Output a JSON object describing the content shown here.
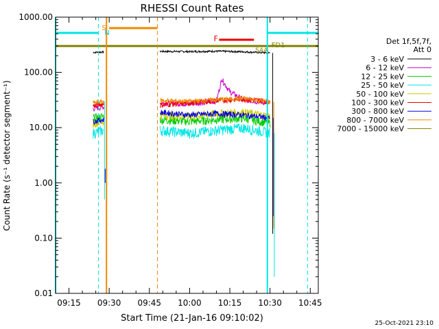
{
  "chart_data": {
    "type": "line",
    "title": "RHESSI Count Rates",
    "xlabel": "Start Time (21-Jan-16 09:10:02)",
    "ylabel": "Count Rate (s⁻¹ detector segment⁻¹)",
    "y_scale": "log",
    "ylim": [
      0.01,
      1000
    ],
    "xlim": [
      "09:10",
      "10:48"
    ],
    "x_ticks": [
      "09:15",
      "09:30",
      "09:45",
      "10:00",
      "10:15",
      "10:30",
      "10:45"
    ],
    "y_ticks": [
      "1000.00",
      "100.00",
      "10.00",
      "1.00",
      "0.10",
      "0.01"
    ],
    "legend_placement": "right",
    "legend_header": [
      "Det 1f,5f,7f,",
      "Att 0"
    ],
    "series": [
      {
        "name": "3 - 6 keV",
        "color": "#000000",
        "x": [
          "09:24",
          "09:28",
          "09:49",
          "10:00",
          "10:10",
          "10:20",
          "10:30"
        ],
        "values": [
          230,
          235,
          240,
          238,
          242,
          236,
          225
        ]
      },
      {
        "name": "6 - 12 keV",
        "color": "#cc00cc",
        "x": [
          "09:24",
          "09:28",
          "09:49",
          "10:00",
          "10:10",
          "10:12",
          "10:15",
          "10:20",
          "10:30"
        ],
        "values": [
          22,
          24,
          28,
          27,
          30,
          75,
          45,
          32,
          28
        ]
      },
      {
        "name": "12 - 25 keV",
        "color": "#00cc00",
        "x": [
          "09:24",
          "09:28",
          "09:49",
          "10:00",
          "10:10",
          "10:20",
          "10:30"
        ],
        "values": [
          15,
          16,
          14,
          13,
          14,
          15,
          12
        ]
      },
      {
        "name": "25 - 50 keV",
        "color": "#00e5e5",
        "x": [
          "09:24",
          "09:28",
          "09:49",
          "10:00",
          "10:10",
          "10:20",
          "10:30"
        ],
        "values": [
          8,
          9,
          9,
          8,
          9,
          10,
          8
        ]
      },
      {
        "name": "50 - 100 keV",
        "color": "#cccc00",
        "x": [
          "09:24",
          "09:28",
          "09:49",
          "10:00",
          "10:10",
          "10:20",
          "10:30"
        ],
        "values": [
          12,
          13,
          17,
          16,
          18,
          19,
          16
        ]
      },
      {
        "name": "100 - 300 keV",
        "color": "#ee0000",
        "x": [
          "09:24",
          "09:28",
          "09:49",
          "10:00",
          "10:10",
          "10:20",
          "10:30"
        ],
        "values": [
          25,
          27,
          26,
          28,
          31,
          33,
          30
        ]
      },
      {
        "name": "300 - 800 keV",
        "color": "#0000dd",
        "x": [
          "09:24",
          "09:28",
          "09:49",
          "10:00",
          "10:10",
          "10:20",
          "10:30"
        ],
        "values": [
          13,
          14,
          19,
          17,
          18,
          17,
          15
        ]
      },
      {
        "name": "800 - 7000 keV",
        "color": "#ee8800",
        "x": [
          "09:24",
          "09:28",
          "09:49",
          "10:00",
          "10:10",
          "10:20",
          "10:30"
        ],
        "values": [
          28,
          30,
          31,
          30,
          32,
          34,
          29
        ]
      },
      {
        "name": "7000 - 15000 keV",
        "color": "#808000",
        "x": [
          "09:10",
          "10:48"
        ],
        "values": [
          300,
          300
        ]
      }
    ],
    "annotations": [
      {
        "label": "S",
        "color": "#ee8800"
      },
      {
        "label": "N",
        "color": "#00cccc"
      },
      {
        "label": "F",
        "color": "#dd0000"
      },
      {
        "label": "FD1",
        "color": "#808000"
      },
      {
        "label": "SAA",
        "color": "#808000"
      }
    ],
    "footer_date": "25-Oct-2021 23:10"
  }
}
